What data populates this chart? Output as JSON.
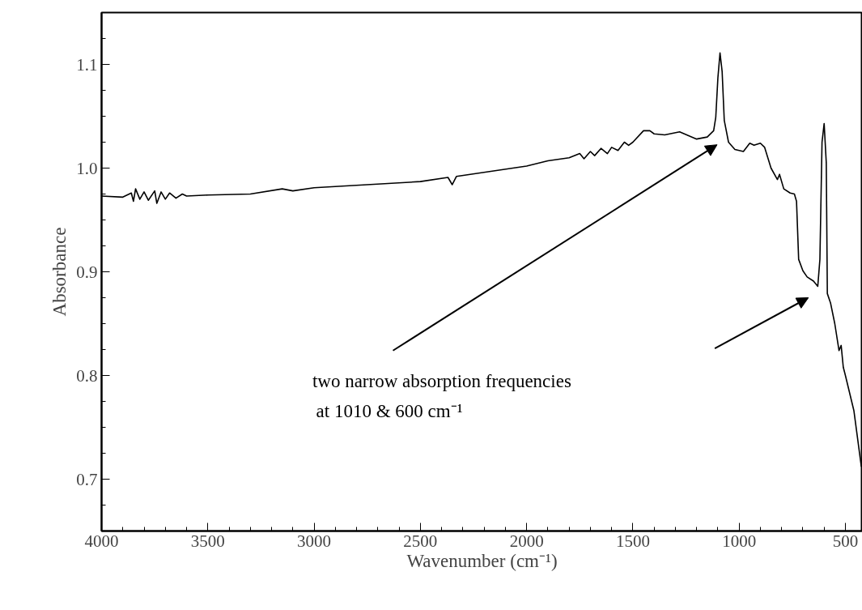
{
  "chart_data": {
    "type": "line",
    "xlabel": "Wavenumber (cm⁻¹)",
    "ylabel": "Absorbance",
    "xlim": [
      4000,
      420
    ],
    "ylim": [
      0.65,
      1.15
    ],
    "xticks": [
      4000,
      3500,
      3000,
      2500,
      2000,
      1500,
      1000,
      500
    ],
    "yticks": [
      {
        "value": 0.7,
        "label": "0.7"
      },
      {
        "value": 0.8,
        "label": "0.8"
      },
      {
        "value": 0.9,
        "label": "0.9"
      },
      {
        "value": 1.0,
        "label": "1.0"
      },
      {
        "value": 1.1,
        "label": "1.1"
      }
    ],
    "grid": false,
    "marker": "none",
    "line_style": "solid",
    "annotations": [
      "two narrow absorption frequencies",
      "at 1010 & 600 cm⁻¹"
    ],
    "series": [
      {
        "color": "#000000",
        "x": [
          4000,
          3900,
          3860,
          3850,
          3840,
          3820,
          3800,
          3780,
          3750,
          3740,
          3720,
          3700,
          3680,
          3650,
          3620,
          3600,
          3500,
          3300,
          3150,
          3100,
          3000,
          2500,
          2370,
          2350,
          2330,
          2000,
          1900,
          1800,
          1750,
          1730,
          1700,
          1680,
          1650,
          1620,
          1600,
          1570,
          1540,
          1520,
          1500,
          1450,
          1420,
          1400,
          1350,
          1280,
          1200,
          1150,
          1120,
          1110,
          1100,
          1090,
          1080,
          1070,
          1050,
          1020,
          980,
          950,
          930,
          900,
          880,
          850,
          820,
          810,
          790,
          760,
          740,
          730,
          720,
          700,
          680,
          650,
          630,
          620,
          610,
          600,
          590,
          585,
          570,
          550,
          530,
          520,
          510,
          500,
          460,
          425
        ],
        "values": [
          0.973,
          0.972,
          0.976,
          0.968,
          0.98,
          0.97,
          0.977,
          0.969,
          0.978,
          0.966,
          0.977,
          0.97,
          0.976,
          0.971,
          0.975,
          0.973,
          0.974,
          0.975,
          0.98,
          0.978,
          0.981,
          0.987,
          0.991,
          0.984,
          0.992,
          1.002,
          1.007,
          1.01,
          1.014,
          1.009,
          1.016,
          1.012,
          1.019,
          1.014,
          1.02,
          1.017,
          1.025,
          1.022,
          1.025,
          1.036,
          1.036,
          1.033,
          1.032,
          1.035,
          1.028,
          1.03,
          1.036,
          1.049,
          1.087,
          1.111,
          1.093,
          1.046,
          1.025,
          1.018,
          1.016,
          1.024,
          1.022,
          1.024,
          1.02,
          1.0,
          0.989,
          0.994,
          0.98,
          0.976,
          0.975,
          0.968,
          0.912,
          0.901,
          0.895,
          0.891,
          0.886,
          0.912,
          1.025,
          1.043,
          1.005,
          0.879,
          0.87,
          0.85,
          0.824,
          0.829,
          0.808,
          0.8,
          0.766,
          0.712
        ]
      }
    ]
  }
}
